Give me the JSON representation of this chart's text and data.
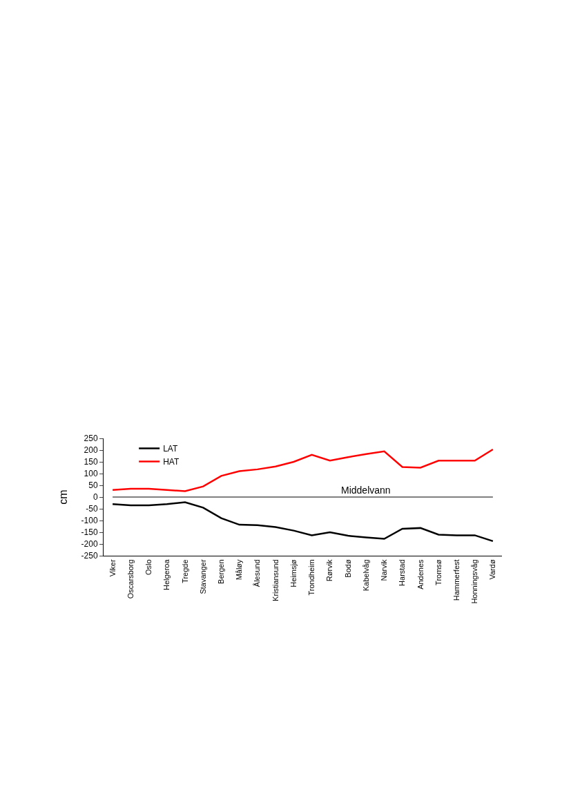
{
  "chart_data": {
    "type": "line",
    "ylabel": "cm",
    "categories": [
      "Viker",
      "Oscarsborg",
      "Oslo",
      "Helgeroa",
      "Tregde",
      "Stavanger",
      "Bergen",
      "Måløy",
      "Ålesund",
      "Kristiansund",
      "Heimsjø",
      "Trondheim",
      "Rørvik",
      "Bodø",
      "Kabelvåg",
      "Narvik",
      "Harstad",
      "Andenes",
      "Tromsø",
      "Hammerfest",
      "Honningsvåg",
      "Vardø"
    ],
    "series": [
      {
        "name": "LAT",
        "color": "#000000",
        "values": [
          -30,
          -35,
          -35,
          -30,
          -22,
          -45,
          -90,
          -118,
          -120,
          -128,
          -143,
          -163,
          -150,
          -165,
          -172,
          -178,
          -135,
          -132,
          -160,
          -163,
          -163,
          -188
        ]
      },
      {
        "name": "HAT",
        "color": "#ff0000",
        "values": [
          30,
          35,
          35,
          30,
          25,
          45,
          90,
          110,
          118,
          130,
          150,
          180,
          155,
          170,
          183,
          195,
          128,
          125,
          155,
          155,
          155,
          203
        ]
      }
    ],
    "ylim": [
      -250,
      250
    ],
    "yticks": [
      -250,
      -200,
      -150,
      -100,
      -50,
      0,
      50,
      100,
      150,
      200,
      250
    ],
    "ref_lines": [
      {
        "axis": "y",
        "value": 0,
        "label": "Middelvann",
        "color": "#000000"
      }
    ],
    "legend": "top left",
    "marker": "none",
    "line_style": "solid"
  }
}
